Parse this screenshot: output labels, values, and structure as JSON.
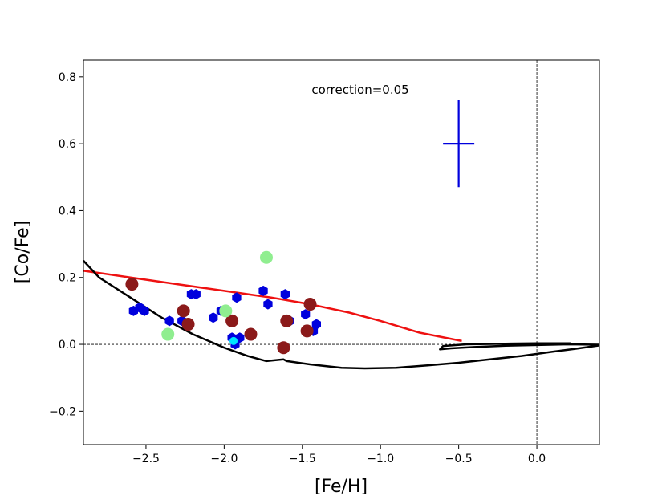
{
  "chart_data": {
    "type": "scatter",
    "title": "",
    "xlabel": "[Fe/H]",
    "ylabel": "[Co/Fe]",
    "xlim": [
      -2.9,
      0.4
    ],
    "ylim": [
      -0.3,
      0.85
    ],
    "xticks": [
      -2.5,
      -2.0,
      -1.5,
      -1.0,
      -0.5,
      0.0
    ],
    "xtick_labels": [
      "−2.5",
      "−2.0",
      "−1.5",
      "−1.0",
      "−0.5",
      "0.0"
    ],
    "yticks": [
      -0.2,
      0.0,
      0.2,
      0.4,
      0.6,
      0.8
    ],
    "ytick_labels": [
      "−0.2",
      "0.0",
      "0.2",
      "0.4",
      "0.6",
      "0.8"
    ],
    "annotation": "correction=0.05",
    "colors": {
      "blue": "#0000dd",
      "darkred": "#8b1a1a",
      "lightgreen": "#90ee90",
      "cyan": "#00e5ff",
      "red_line": "#ee1111",
      "black": "#000000"
    },
    "reference_lines": {
      "horizontal_y": 0.0,
      "vertical_x": 0.0
    },
    "error_bar": {
      "x": -0.5,
      "y": 0.6,
      "xerr": 0.1,
      "yerr": 0.13
    },
    "series": [
      {
        "name": "blue_points",
        "marker": "hexagon",
        "color": "blue",
        "points": [
          [
            -2.58,
            0.1
          ],
          [
            -2.54,
            0.11
          ],
          [
            -2.51,
            0.1
          ],
          [
            -2.35,
            0.07
          ],
          [
            -2.27,
            0.07
          ],
          [
            -2.24,
            0.06
          ],
          [
            -2.21,
            0.15
          ],
          [
            -2.18,
            0.15
          ],
          [
            -2.07,
            0.08
          ],
          [
            -2.02,
            0.1
          ],
          [
            -1.95,
            0.02
          ],
          [
            -1.93,
            0.0
          ],
          [
            -1.92,
            0.14
          ],
          [
            -1.9,
            0.02
          ],
          [
            -1.75,
            0.16
          ],
          [
            -1.72,
            0.12
          ],
          [
            -1.61,
            0.15
          ],
          [
            -1.58,
            0.07
          ],
          [
            -1.48,
            0.09
          ],
          [
            -1.43,
            0.04
          ],
          [
            -1.41,
            0.06
          ]
        ]
      },
      {
        "name": "darkred_points",
        "marker": "circle",
        "color": "darkred",
        "points": [
          [
            -2.59,
            0.18
          ],
          [
            -2.26,
            0.1
          ],
          [
            -2.23,
            0.06
          ],
          [
            -1.95,
            0.07
          ],
          [
            -1.83,
            0.03
          ],
          [
            -1.62,
            -0.01
          ],
          [
            -1.6,
            0.07
          ],
          [
            -1.47,
            0.04
          ],
          [
            -1.45,
            0.12
          ]
        ]
      },
      {
        "name": "lightgreen_points",
        "marker": "circle",
        "color": "lightgreen",
        "points": [
          [
            -2.36,
            0.03
          ],
          [
            -1.99,
            0.1
          ],
          [
            -1.73,
            0.26
          ]
        ]
      },
      {
        "name": "cyan_point",
        "marker": "circle",
        "color": "cyan",
        "points": [
          [
            -1.94,
            0.01
          ]
        ]
      }
    ],
    "lines": [
      {
        "name": "red_model",
        "color": "red_line",
        "points": [
          [
            -2.9,
            0.22
          ],
          [
            -2.6,
            0.2
          ],
          [
            -2.3,
            0.18
          ],
          [
            -2.0,
            0.16
          ],
          [
            -1.7,
            0.14
          ],
          [
            -1.45,
            0.12
          ],
          [
            -1.2,
            0.095
          ],
          [
            -1.0,
            0.07
          ],
          [
            -0.75,
            0.035
          ],
          [
            -0.48,
            0.01
          ]
        ]
      },
      {
        "name": "black_model",
        "color": "black",
        "points": [
          [
            -2.9,
            0.25
          ],
          [
            -2.8,
            0.2
          ],
          [
            -2.6,
            0.14
          ],
          [
            -2.4,
            0.08
          ],
          [
            -2.2,
            0.03
          ],
          [
            -2.0,
            -0.01
          ],
          [
            -1.85,
            -0.035
          ],
          [
            -1.73,
            -0.05
          ],
          [
            -1.62,
            -0.045
          ],
          [
            -1.6,
            -0.05
          ],
          [
            -1.45,
            -0.06
          ],
          [
            -1.25,
            -0.07
          ],
          [
            -1.1,
            -0.072
          ],
          [
            -0.9,
            -0.07
          ],
          [
            -0.7,
            -0.063
          ],
          [
            -0.5,
            -0.055
          ],
          [
            -0.3,
            -0.045
          ],
          [
            -0.1,
            -0.035
          ],
          [
            0.1,
            -0.022
          ],
          [
            0.25,
            -0.013
          ],
          [
            0.4,
            -0.003
          ],
          [
            0.4,
            -0.001
          ],
          [
            0.2,
            0.0
          ],
          [
            0.0,
            -0.002
          ],
          [
            -0.2,
            -0.004
          ],
          [
            -0.4,
            -0.008
          ],
          [
            -0.55,
            -0.012
          ],
          [
            -0.62,
            -0.015
          ],
          [
            -0.6,
            -0.005
          ],
          [
            -0.45,
            0.0
          ],
          [
            -0.2,
            0.002
          ],
          [
            0.0,
            0.003
          ],
          [
            0.22,
            0.003
          ]
        ]
      }
    ]
  }
}
